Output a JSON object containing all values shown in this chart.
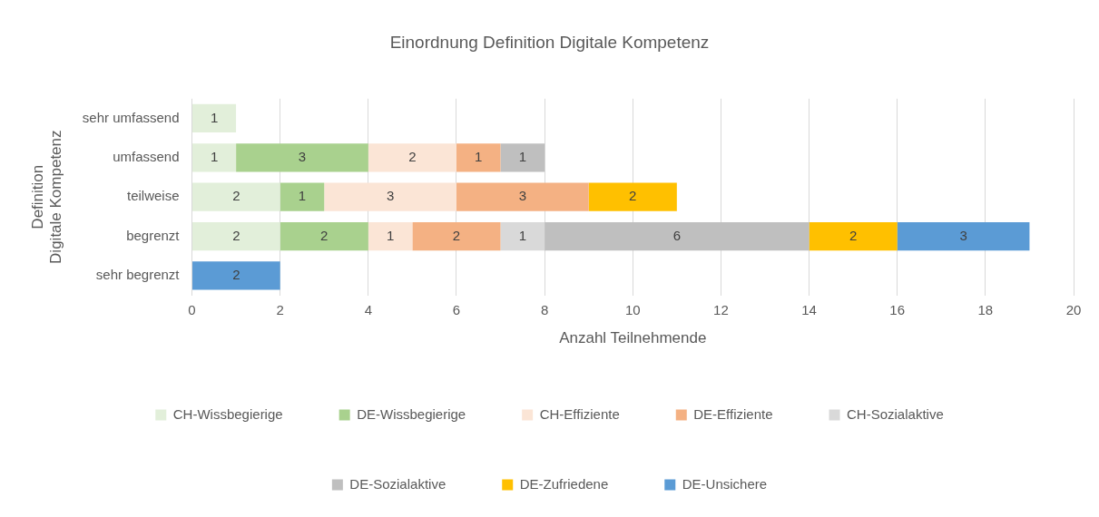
{
  "chart_data": {
    "type": "bar",
    "orientation": "horizontal",
    "stacked": true,
    "title": "Einordnung Definition Digitale Kompetenz",
    "xlabel": "Anzahl Teilnehmende",
    "ylabel": "Definition\nDigitale Kompetenz",
    "categories": [
      "sehr umfassend",
      "umfassend",
      "teilweise",
      "begrenzt",
      "sehr begrenzt"
    ],
    "series": [
      {
        "name": "CH-Wissbegierige",
        "color": "#e2efda",
        "values": [
          1,
          1,
          2,
          2,
          null
        ]
      },
      {
        "name": "DE-Wissbegierige",
        "color": "#a9d18e",
        "values": [
          null,
          3,
          1,
          2,
          null
        ]
      },
      {
        "name": "CH-Effiziente",
        "color": "#fbe5d6",
        "values": [
          null,
          2,
          3,
          1,
          null
        ]
      },
      {
        "name": "DE-Effiziente",
        "color": "#f4b183",
        "values": [
          null,
          1,
          3,
          2,
          null
        ]
      },
      {
        "name": "CH-Sozialaktive",
        "color": "#d9d9d9",
        "values": [
          null,
          null,
          null,
          1,
          null
        ]
      },
      {
        "name": "DE-Sozialaktive",
        "color": "#bfbfbf",
        "values": [
          null,
          1,
          null,
          6,
          null
        ]
      },
      {
        "name": "DE-Zufriedene",
        "color": "#ffc000",
        "values": [
          null,
          null,
          2,
          2,
          null
        ]
      },
      {
        "name": "DE-Unsichere",
        "color": "#5b9bd5",
        "values": [
          null,
          null,
          null,
          3,
          2
        ]
      }
    ],
    "xlim": [
      0,
      20
    ],
    "xticks": [
      0,
      2,
      4,
      6,
      8,
      10,
      12,
      14,
      16,
      18,
      20
    ],
    "grid": "x",
    "legend": "bottom",
    "data_labels": true
  }
}
